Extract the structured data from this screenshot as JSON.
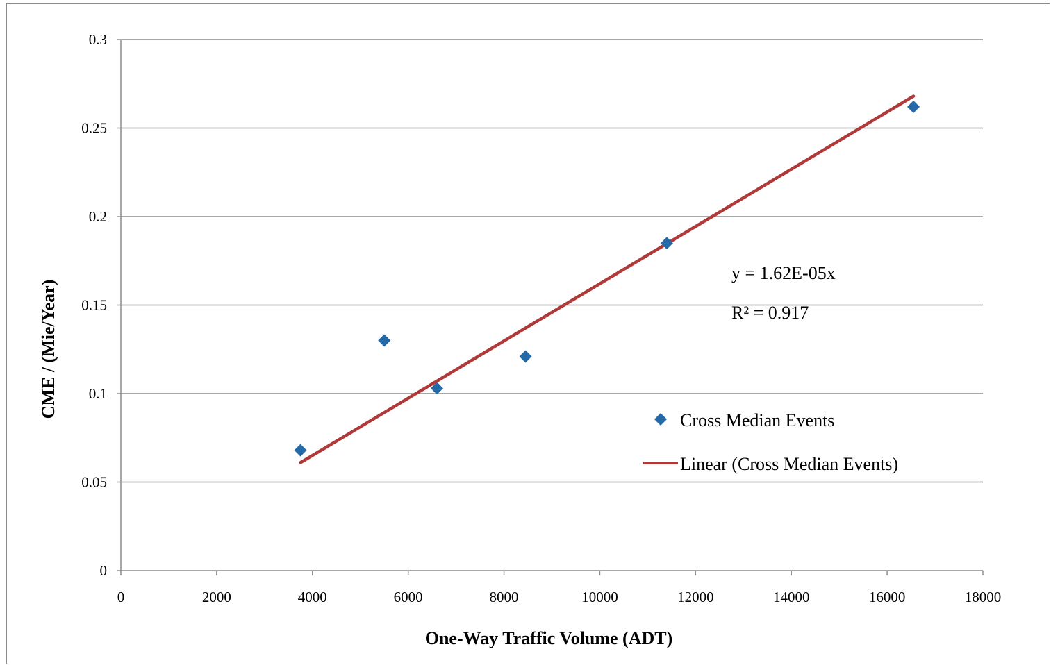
{
  "chart_data": {
    "type": "scatter",
    "title": "",
    "xlabel": "One-Way Traffic Volume (ADT)",
    "ylabel": "CME / (Mie/Year)",
    "xlim": [
      0,
      18000
    ],
    "ylim": [
      0,
      0.3
    ],
    "x_ticks": [
      "0",
      "2000",
      "4000",
      "6000",
      "8000",
      "10000",
      "12000",
      "14000",
      "16000",
      "18000"
    ],
    "y_ticks": [
      "0",
      "0.05",
      "0.1",
      "0.15",
      "0.2",
      "0.25",
      "0.3"
    ],
    "grid": "horizontal",
    "legend_position": "right",
    "series": [
      {
        "name": "Cross Median Events",
        "marker": "diamond",
        "color": "#2469a8",
        "points": [
          {
            "x": 3750,
            "y": 0.068
          },
          {
            "x": 5500,
            "y": 0.13
          },
          {
            "x": 6600,
            "y": 0.103
          },
          {
            "x": 8450,
            "y": 0.121
          },
          {
            "x": 11400,
            "y": 0.185
          },
          {
            "x": 16550,
            "y": 0.262
          }
        ]
      },
      {
        "name": "Linear (Cross Median Events)",
        "type": "line",
        "color": "#b03a3a",
        "points": [
          {
            "x": 3750,
            "y": 0.061
          },
          {
            "x": 16550,
            "y": 0.268
          }
        ]
      }
    ],
    "annotations": [
      "y = 1.62E-05x",
      "R² = 0.917"
    ]
  }
}
